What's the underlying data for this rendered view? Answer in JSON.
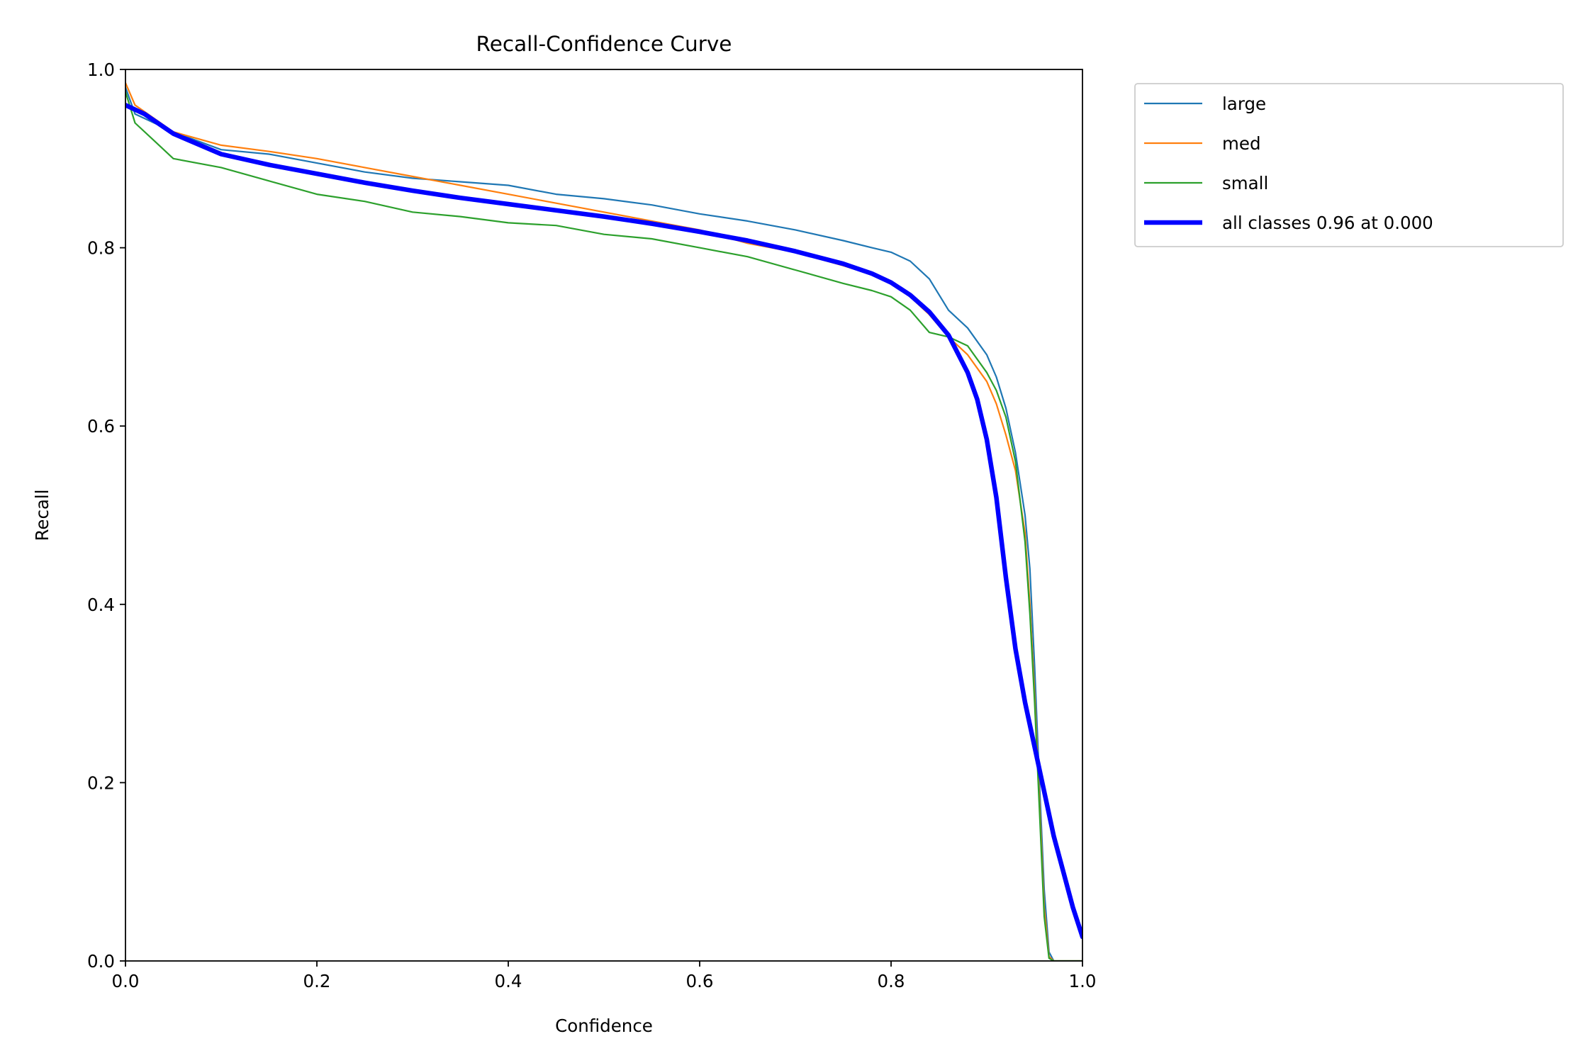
{
  "chart_data": {
    "type": "line",
    "title": "Recall-Confidence Curve",
    "xlabel": "Confidence",
    "ylabel": "Recall",
    "xlim": [
      0.0,
      1.0
    ],
    "ylim": [
      0.0,
      1.0
    ],
    "xticks": [
      "0.0",
      "0.2",
      "0.4",
      "0.6",
      "0.8",
      "1.0"
    ],
    "yticks": [
      "0.0",
      "0.2",
      "0.4",
      "0.6",
      "0.8",
      "1.0"
    ],
    "grid": false,
    "legend_position": "outside upper right",
    "series": [
      {
        "name": "large",
        "color": "#1f77b4",
        "x": [
          0.0,
          0.01,
          0.03,
          0.05,
          0.1,
          0.15,
          0.2,
          0.25,
          0.3,
          0.35,
          0.4,
          0.45,
          0.5,
          0.55,
          0.6,
          0.65,
          0.7,
          0.75,
          0.78,
          0.8,
          0.82,
          0.84,
          0.86,
          0.88,
          0.9,
          0.91,
          0.92,
          0.93,
          0.94,
          0.945,
          0.95,
          0.955,
          0.96,
          0.965,
          0.97,
          0.98,
          1.0
        ],
        "y": [
          0.98,
          0.95,
          0.94,
          0.93,
          0.91,
          0.905,
          0.895,
          0.885,
          0.878,
          0.874,
          0.87,
          0.86,
          0.855,
          0.848,
          0.838,
          0.83,
          0.82,
          0.808,
          0.8,
          0.795,
          0.785,
          0.765,
          0.73,
          0.71,
          0.68,
          0.655,
          0.62,
          0.57,
          0.5,
          0.44,
          0.33,
          0.2,
          0.08,
          0.01,
          0.0,
          0.0,
          0.0
        ]
      },
      {
        "name": "med",
        "color": "#ff7f0e",
        "x": [
          0.0,
          0.01,
          0.03,
          0.05,
          0.1,
          0.15,
          0.2,
          0.25,
          0.3,
          0.35,
          0.4,
          0.45,
          0.5,
          0.55,
          0.6,
          0.65,
          0.7,
          0.75,
          0.78,
          0.8,
          0.82,
          0.84,
          0.86,
          0.88,
          0.9,
          0.91,
          0.92,
          0.93,
          0.94,
          0.945,
          0.95,
          0.955,
          0.96,
          0.965,
          0.97,
          0.98,
          1.0
        ],
        "y": [
          0.985,
          0.96,
          0.945,
          0.93,
          0.915,
          0.908,
          0.9,
          0.89,
          0.88,
          0.87,
          0.86,
          0.85,
          0.84,
          0.83,
          0.82,
          0.805,
          0.795,
          0.78,
          0.77,
          0.76,
          0.745,
          0.725,
          0.7,
          0.68,
          0.65,
          0.625,
          0.59,
          0.55,
          0.48,
          0.4,
          0.3,
          0.18,
          0.06,
          0.005,
          0.0,
          0.0,
          0.0
        ]
      },
      {
        "name": "small",
        "color": "#2ca02c",
        "x": [
          0.0,
          0.01,
          0.03,
          0.05,
          0.1,
          0.15,
          0.2,
          0.25,
          0.3,
          0.35,
          0.4,
          0.45,
          0.5,
          0.55,
          0.6,
          0.65,
          0.7,
          0.75,
          0.78,
          0.8,
          0.82,
          0.84,
          0.86,
          0.88,
          0.9,
          0.91,
          0.92,
          0.93,
          0.94,
          0.945,
          0.95,
          0.955,
          0.96,
          0.965,
          0.97,
          0.98,
          1.0
        ],
        "y": [
          0.975,
          0.94,
          0.92,
          0.9,
          0.89,
          0.875,
          0.86,
          0.852,
          0.84,
          0.835,
          0.828,
          0.825,
          0.815,
          0.81,
          0.8,
          0.79,
          0.775,
          0.76,
          0.752,
          0.745,
          0.73,
          0.705,
          0.7,
          0.69,
          0.66,
          0.64,
          0.61,
          0.56,
          0.47,
          0.39,
          0.29,
          0.17,
          0.05,
          0.003,
          0.0,
          0.0,
          0.0
        ]
      },
      {
        "name": "all classes 0.96 at 0.000",
        "color": "#0000ff",
        "bold": true,
        "x": [
          0.0,
          0.02,
          0.05,
          0.1,
          0.15,
          0.2,
          0.25,
          0.3,
          0.35,
          0.4,
          0.45,
          0.5,
          0.55,
          0.6,
          0.65,
          0.7,
          0.75,
          0.78,
          0.8,
          0.82,
          0.84,
          0.86,
          0.88,
          0.89,
          0.9,
          0.91,
          0.92,
          0.93,
          0.94,
          0.95,
          0.96,
          0.97,
          0.98,
          0.99,
          1.0
        ],
        "y": [
          0.96,
          0.95,
          0.928,
          0.905,
          0.893,
          0.883,
          0.873,
          0.864,
          0.856,
          0.849,
          0.842,
          0.835,
          0.827,
          0.818,
          0.808,
          0.796,
          0.782,
          0.771,
          0.761,
          0.747,
          0.728,
          0.702,
          0.66,
          0.63,
          0.585,
          0.52,
          0.43,
          0.35,
          0.29,
          0.24,
          0.19,
          0.14,
          0.1,
          0.06,
          0.027
        ]
      }
    ]
  }
}
